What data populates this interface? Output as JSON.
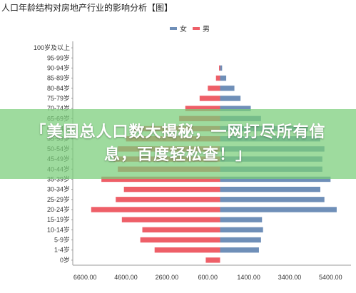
{
  "page": {
    "title": "人口年龄结构对房地产行业的影响分析【图】",
    "banner": "「美国总人口数大揭秘，一网打尽所有信息，百度轻松查！」"
  },
  "colors": {
    "female": "#6f8fb8",
    "male": "#ee5f68"
  },
  "chart_data": {
    "type": "bar",
    "orientation": "horizontal",
    "title": "",
    "legend": {
      "position": "top",
      "items": [
        "女",
        "男"
      ]
    },
    "categories": [
      "0岁",
      "1-4岁",
      "5-9岁",
      "10-14岁",
      "15-19岁",
      "20-24岁",
      "25-29岁",
      "30-34岁",
      "35-39岁",
      "40-44岁",
      "45-49岁",
      "50-54岁",
      "55-59岁",
      "60-64岁",
      "65-69岁",
      "70-74岁",
      "75-79岁",
      "80-84岁",
      "85-89岁",
      "90-94岁",
      "95-99岁",
      "100岁及以上"
    ],
    "x_ticks": [
      "6600.00",
      "4600.00",
      "2600.00",
      "600.00",
      "1400.00",
      "3400.00",
      "5400.00"
    ],
    "x_tick_values": [
      -6600,
      -4600,
      -2600,
      -600,
      1400,
      3400,
      5400
    ],
    "xlim": [
      -7200,
      6400
    ],
    "series": [
      {
        "name": "女",
        "values": [
          0,
          1900,
          2000,
          2100,
          2050,
          5700,
          5100,
          4900,
          5400,
          5000,
          5000,
          5100,
          4900,
          4300,
          2000,
          1500,
          1000,
          700,
          300,
          100,
          0,
          0
        ]
      },
      {
        "name": "男",
        "values": [
          -700,
          -3200,
          -3900,
          -3800,
          -4800,
          -6300,
          -5100,
          -4700,
          -5800,
          -5000,
          -5200,
          -5000,
          -4600,
          -4200,
          -2000,
          -1700,
          -1000,
          -600,
          -200,
          -50,
          0,
          0
        ]
      }
    ]
  }
}
